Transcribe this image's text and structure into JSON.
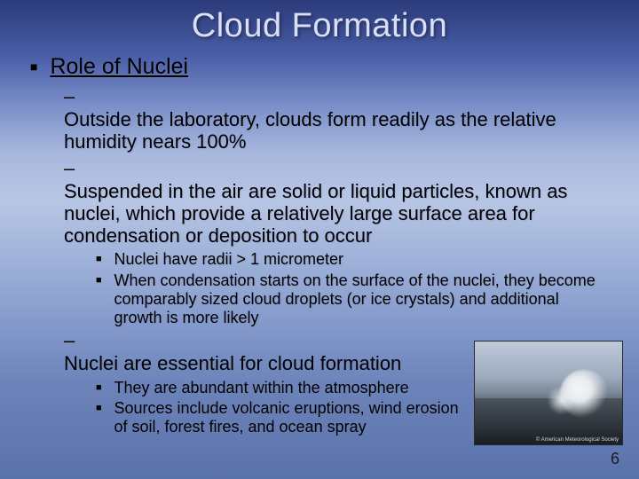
{
  "slide": {
    "title": "Cloud Formation",
    "page_number": "6",
    "colors": {
      "title_color": "#d8e0f5",
      "text_color": "#000000",
      "bg_gradient_top": "#2b3a7a",
      "bg_gradient_bottom": "#5a72ab"
    },
    "fonts": {
      "title_size_pt": 38,
      "level1_size_pt": 25,
      "level2_size_pt": 22,
      "level3_size_pt": 18
    },
    "heading": "Role of Nuclei",
    "points": {
      "p1": "Outside the laboratory, clouds form readily as the relative humidity nears 100%",
      "p2": "Suspended in the air are solid or liquid particles, known as nuclei, which provide a relatively large surface area for condensation or deposition to occur",
      "p2a": "Nuclei have radii > 1 micrometer",
      "p2b": "When condensation starts on the surface of the nuclei, they become comparably sized cloud droplets (or ice crystals) and additional growth is more likely",
      "p3": "Nuclei are essential for cloud formation",
      "p3a": "They are abundant within the atmosphere",
      "p3b": "Sources include volcanic eruptions, wind erosion of soil, forest fires, and ocean spray"
    },
    "image": {
      "alt": "Ocean wave crashing on rocks",
      "credit": "© American Meteorological Society"
    }
  }
}
